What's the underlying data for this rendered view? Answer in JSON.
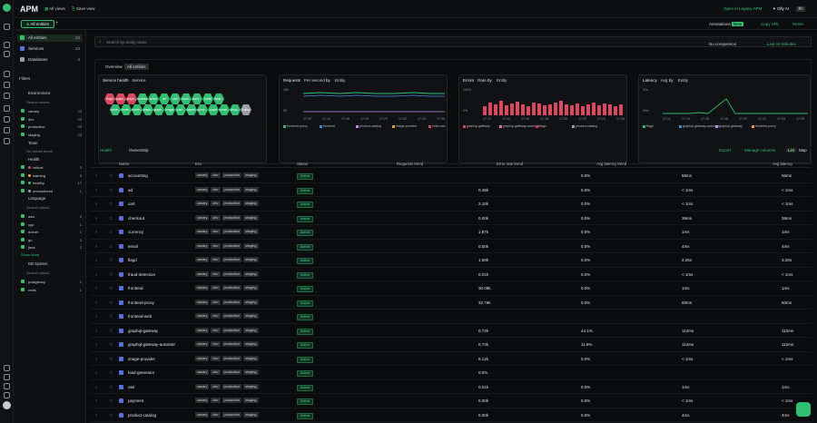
{
  "app": {
    "title": "APM",
    "all_views": "All views",
    "save_view": "Save view",
    "open_legacy": "Open in Legacy APM",
    "olly": "Olly AI",
    "kbd": "⌘I"
  },
  "tab": {
    "label": "All entities",
    "add": "+"
  },
  "sidebar": {
    "items": [
      {
        "label": "All entities",
        "count": "23"
      },
      {
        "label": "Services",
        "count": "23"
      },
      {
        "label": "Databases",
        "count": "2"
      }
    ],
    "filters_title": "Filters",
    "env_title": "Environment",
    "search": "Search values",
    "env": [
      {
        "label": "canary",
        "count": "23"
      },
      {
        "label": "dev",
        "count": "23"
      },
      {
        "label": "production",
        "count": "23"
      },
      {
        "label": "staging",
        "count": "23"
      }
    ],
    "team_title": "Team",
    "no_values": "No values found",
    "health_title": "Health",
    "health": [
      {
        "label": "critical",
        "count": "3"
      },
      {
        "label": "warning",
        "count": "0"
      },
      {
        "label": "healthy",
        "count": "17"
      },
      {
        "label": "unmonitored",
        "count": "1"
      }
    ],
    "lang_title": "Language",
    "lang": [
      {
        "label": "aws",
        "count": "2"
      },
      {
        "label": "cpp",
        "count": "1"
      },
      {
        "label": "dotnet",
        "count": "1"
      },
      {
        "label": "go",
        "count": "3"
      },
      {
        "label": "java",
        "count": "2"
      }
    ],
    "show_more": "Show More",
    "db_title": "DB System",
    "db": [
      {
        "label": "postgresql",
        "count": "1"
      },
      {
        "label": "redis",
        "count": "1"
      }
    ]
  },
  "main": {
    "annotations": "Annotations",
    "new_badge": "New",
    "copy_url": "Copy URL",
    "reset": "Reset",
    "search_placeholder": "Search by entity name",
    "no_comparison": "No comparison",
    "time_range": "Last 15 Minutes",
    "overview": "Overview",
    "overview_scope": "All entities",
    "panels": {
      "health": {
        "title": "Service health",
        "dd": "Service"
      },
      "requests": {
        "title": "Requests",
        "dd1": "Per second",
        "by": "by",
        "dd2": "Entity",
        "y_top": "40k",
        "y_bot": "0k"
      },
      "errors": {
        "title": "Errors",
        "dd1": "Rate",
        "by": "by",
        "dd2": "Entity",
        "y_top": "100%",
        "y_bot": "0%"
      },
      "latency": {
        "title": "Latency",
        "dd1": "Avg",
        "by": "by",
        "dd2": "Entity",
        "y_top": "32s",
        "y_bot": "0ms"
      }
    },
    "times": [
      "17:12",
      "17:14",
      "17:16",
      "17:18",
      "17:20",
      "17:22",
      "17:24",
      "17:26"
    ],
    "req_legend": [
      "frontend-proxy",
      "frontend",
      "product-catalog",
      "image-provider",
      "redis-cart"
    ],
    "err_legend": [
      "graphql-gateway",
      "graphql-gateway-autoinstr",
      "flagd",
      "product-catalog"
    ],
    "lat_legend": [
      "flagd",
      "graphql-gateway-autoinstr",
      "graphql-gateway",
      "frontend-proxy"
    ],
    "hexes": [
      "flagd",
      "graph...",
      "graph...",
      "frontend",
      "action",
      "ad",
      "cart",
      "check...",
      "curre...",
      "email",
      "fraud...",
      "fronte...",
      "fronte...",
      "fronte...",
      "graph...",
      "graph...",
      "image",
      "load...",
      "payme...",
      "produ...",
      "quote",
      "recom...",
      "shipp...",
      "kafka"
    ],
    "table_tabs": {
      "health": "Health",
      "ownership": "Ownership"
    },
    "table_actions": {
      "export": "Export",
      "manage": "Manage columns",
      "list": "List",
      "map": "Map"
    },
    "cols": [
      "Name",
      "Env",
      "Status",
      "Requests trend",
      "Error rate trend",
      "Avg latency trend",
      "Avg latency"
    ],
    "rows": [
      {
        "name": "accounting",
        "status": "Active",
        "req": "",
        "err": "0.0%",
        "lat": "56ms",
        "avg": "56ms"
      },
      {
        "name": "ad",
        "status": "Active",
        "req": "0.49k",
        "err": "0.0%",
        "lat": "< 1ms",
        "avg": "< 1ms"
      },
      {
        "name": "cart",
        "status": "Active",
        "req": "2.10k",
        "err": "0.0%",
        "lat": "< 1ms",
        "avg": "< 1ms"
      },
      {
        "name": "checkout",
        "status": "Active",
        "req": "0.00k",
        "err": "0.0%",
        "lat": "36ms",
        "avg": "36ms"
      },
      {
        "name": "currency",
        "status": "Active",
        "req": "1.87k",
        "err": "0.0%",
        "lat": "1ms",
        "avg": "1ms"
      },
      {
        "name": "email",
        "status": "Active",
        "req": "0.00k",
        "err": "0.0%",
        "lat": "4ms",
        "avg": "4ms"
      },
      {
        "name": "flagd",
        "status": "Active",
        "req": "1.59k",
        "err": "0.0%",
        "lat": "3.26s",
        "avg": "3.26s"
      },
      {
        "name": "fraud-detection",
        "status": "Active",
        "req": "0.01k",
        "err": "0.0%",
        "lat": "< 1ms",
        "avg": "< 1ms"
      },
      {
        "name": "frontend",
        "status": "Active",
        "req": "30.08k",
        "err": "0.0%",
        "lat": "1ms",
        "avg": "1ms"
      },
      {
        "name": "frontend-proxy",
        "status": "Active",
        "req": "32.76k",
        "err": "0.0%",
        "lat": "60ms",
        "avg": "60ms"
      },
      {
        "name": "frontend-web",
        "status": "Active",
        "req": "",
        "err": "",
        "lat": "",
        "avg": ""
      },
      {
        "name": "graphql-gateway",
        "status": "Active",
        "req": "0.72k",
        "err": "44.1%",
        "lat": "112ms",
        "avg": "112ms"
      },
      {
        "name": "graphql-gateway-autoinstr",
        "status": "Active",
        "req": "0.73k",
        "err": "11.5%",
        "lat": "112ms",
        "avg": "112ms"
      },
      {
        "name": "image-provider",
        "status": "Active",
        "req": "8.12k",
        "err": "0.0%",
        "lat": "< 1ms",
        "avg": "< 1ms"
      },
      {
        "name": "load-generator",
        "status": "Active",
        "req": "0.0%",
        "err": "",
        "lat": "",
        "avg": ""
      },
      {
        "name": "otel",
        "status": "Active",
        "req": "0.01k",
        "err": "0.0%",
        "lat": "1ms",
        "avg": "1ms"
      },
      {
        "name": "payment",
        "status": "Active",
        "req": "0.00k",
        "err": "0.0%",
        "lat": "< 1ms",
        "avg": "< 1ms"
      },
      {
        "name": "product-catalog",
        "status": "Active",
        "req": "0.00k",
        "err": "0.0%",
        "lat": "4ms",
        "avg": "4ms"
      }
    ],
    "envs": [
      "canary",
      "dev",
      "production",
      "staging"
    ]
  },
  "colors": {
    "accent": "#2fbf71",
    "critical": "#d9485f",
    "unmonitored": "#9aa0a6",
    "line": "#5a6fe0"
  }
}
